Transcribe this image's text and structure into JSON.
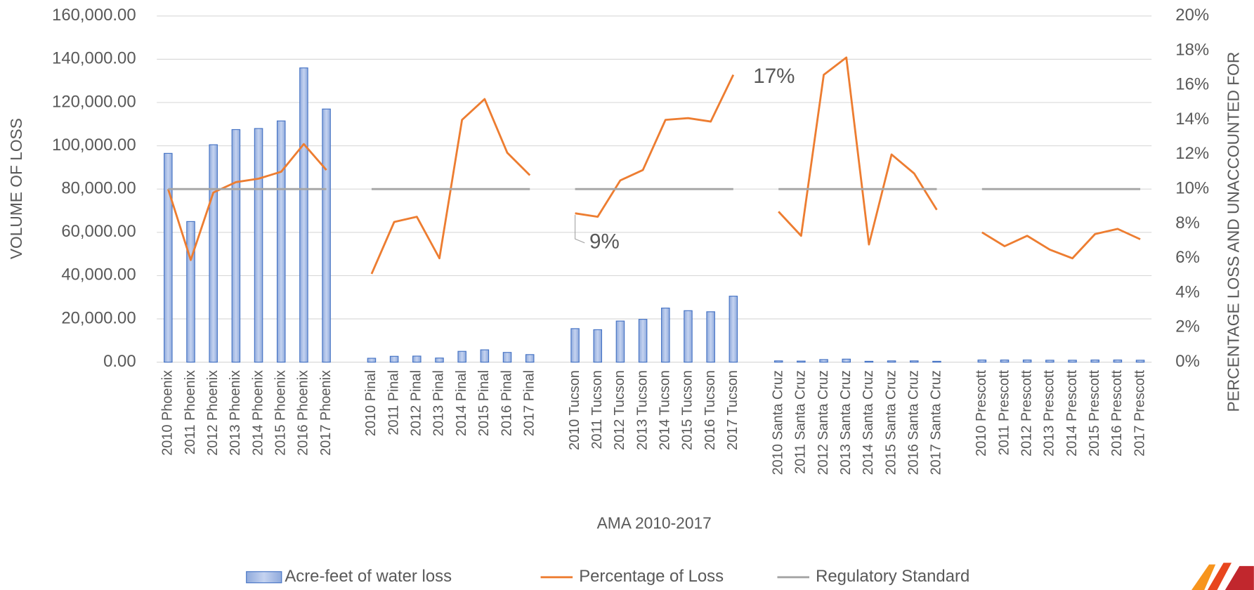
{
  "chart_data": {
    "type": "bar",
    "x_label": "AMA 2010-2017",
    "y_label": "VOLUME OF LOSS",
    "y2_label": "PERCENTAGE LOSS AND UNACCOUNTED FOR",
    "categories": [
      "2010 Phoenix",
      "2011 Phoenix",
      "2012 Phoenix",
      "2013 Phoenix",
      "2014 Phoenix",
      "2015 Phoenix",
      "2016 Phoenix",
      "2017 Phoenix",
      null,
      "2010 Pinal",
      "2011 Pinal",
      "2012 Pinal",
      "2013 Pinal",
      "2014 Pinal",
      "2015 Pinal",
      "2016 Pinal",
      "2017 Pinal",
      null,
      "2010 Tucson",
      "2011 Tucson",
      "2012 Tucson",
      "2013 Tucson",
      "2014 Tucson",
      "2015 Tucson",
      "2016 Tucson",
      "2017 Tucson",
      null,
      "2010 Santa Cruz",
      "2011 Santa Cruz",
      "2012 Santa Cruz",
      "2013 Santa Cruz",
      "2014 Santa Cruz",
      "2015 Santa Cruz",
      "2016 Santa Cruz",
      "2017 Santa Cruz",
      null,
      "2010 Prescott",
      "2011 Prescott",
      "2012 Prescott",
      "2013 Prescott",
      "2014 Prescott",
      "2015 Prescott",
      "2016 Prescott",
      "2017 Prescott"
    ],
    "series": [
      {
        "name": "Acre-feet of water loss",
        "type": "bar",
        "color": "#4472c4",
        "values": [
          96500,
          65000,
          100500,
          107500,
          108000,
          111500,
          136000,
          117000,
          null,
          1800,
          2700,
          2800,
          1900,
          5000,
          5700,
          4500,
          3500,
          null,
          15500,
          15000,
          19000,
          19800,
          25000,
          23800,
          23300,
          30500,
          null,
          600,
          500,
          1200,
          1400,
          400,
          600,
          600,
          400,
          null,
          1000,
          1000,
          1000,
          900,
          900,
          1000,
          1000,
          900
        ]
      },
      {
        "name": "Percentage of Loss",
        "type": "line",
        "axis": "y2",
        "color": "#ed7d31",
        "values": [
          10.0,
          5.9,
          9.8,
          10.4,
          10.6,
          11.0,
          12.6,
          11.1,
          null,
          5.1,
          8.1,
          8.4,
          6.0,
          14.0,
          15.2,
          12.1,
          10.8,
          null,
          8.6,
          8.4,
          10.5,
          11.1,
          14.0,
          14.1,
          13.9,
          16.6,
          null,
          8.7,
          7.3,
          16.6,
          17.6,
          6.8,
          12.0,
          10.9,
          8.8,
          null,
          7.5,
          6.7,
          7.3,
          6.5,
          6.0,
          7.4,
          7.7,
          7.1
        ],
        "value_labels": [
          null,
          null,
          null,
          null,
          null,
          null,
          null,
          null,
          null,
          null,
          null,
          null,
          null,
          null,
          null,
          null,
          null,
          null,
          "9%",
          null,
          null,
          null,
          null,
          null,
          null,
          "17%",
          null,
          null,
          null,
          null,
          null,
          null,
          null,
          null,
          null,
          null,
          null,
          null,
          null,
          null,
          null,
          null,
          null,
          null
        ]
      },
      {
        "name": "Regulatory Standard",
        "type": "line",
        "axis": "y2",
        "color": "#a5a5a5",
        "values": [
          10,
          10,
          10,
          10,
          10,
          10,
          10,
          10,
          null,
          10,
          10,
          10,
          10,
          10,
          10,
          10,
          10,
          null,
          10,
          10,
          10,
          10,
          10,
          10,
          10,
          10,
          null,
          10,
          10,
          10,
          10,
          10,
          10,
          10,
          10,
          null,
          10,
          10,
          10,
          10,
          10,
          10,
          10,
          10
        ]
      }
    ],
    "ylim": [
      0,
      160000
    ],
    "yticks": [
      {
        "value": 0,
        "label": "0.00"
      },
      {
        "value": 20000,
        "label": "20,000.00"
      },
      {
        "value": 40000,
        "label": "40,000.00"
      },
      {
        "value": 60000,
        "label": "60,000.00"
      },
      {
        "value": 80000,
        "label": "80,000.00"
      },
      {
        "value": 100000,
        "label": "100,000.00"
      },
      {
        "value": 120000,
        "label": "120,000.00"
      },
      {
        "value": 140000,
        "label": "140,000.00"
      },
      {
        "value": 160000,
        "label": "160,000.00"
      }
    ],
    "y2lim": [
      0,
      20
    ],
    "y2ticks": [
      {
        "value": 0,
        "label": "0%"
      },
      {
        "value": 2,
        "label": "2%"
      },
      {
        "value": 4,
        "label": "4%"
      },
      {
        "value": 6,
        "label": "6%"
      },
      {
        "value": 8,
        "label": "8%"
      },
      {
        "value": 10,
        "label": "10%"
      },
      {
        "value": 12,
        "label": "12%"
      },
      {
        "value": 14,
        "label": "14%"
      },
      {
        "value": 16,
        "label": "16%"
      },
      {
        "value": 18,
        "label": "18%"
      },
      {
        "value": 20,
        "label": "20%"
      }
    ],
    "grid": true,
    "legend": "bottom"
  }
}
